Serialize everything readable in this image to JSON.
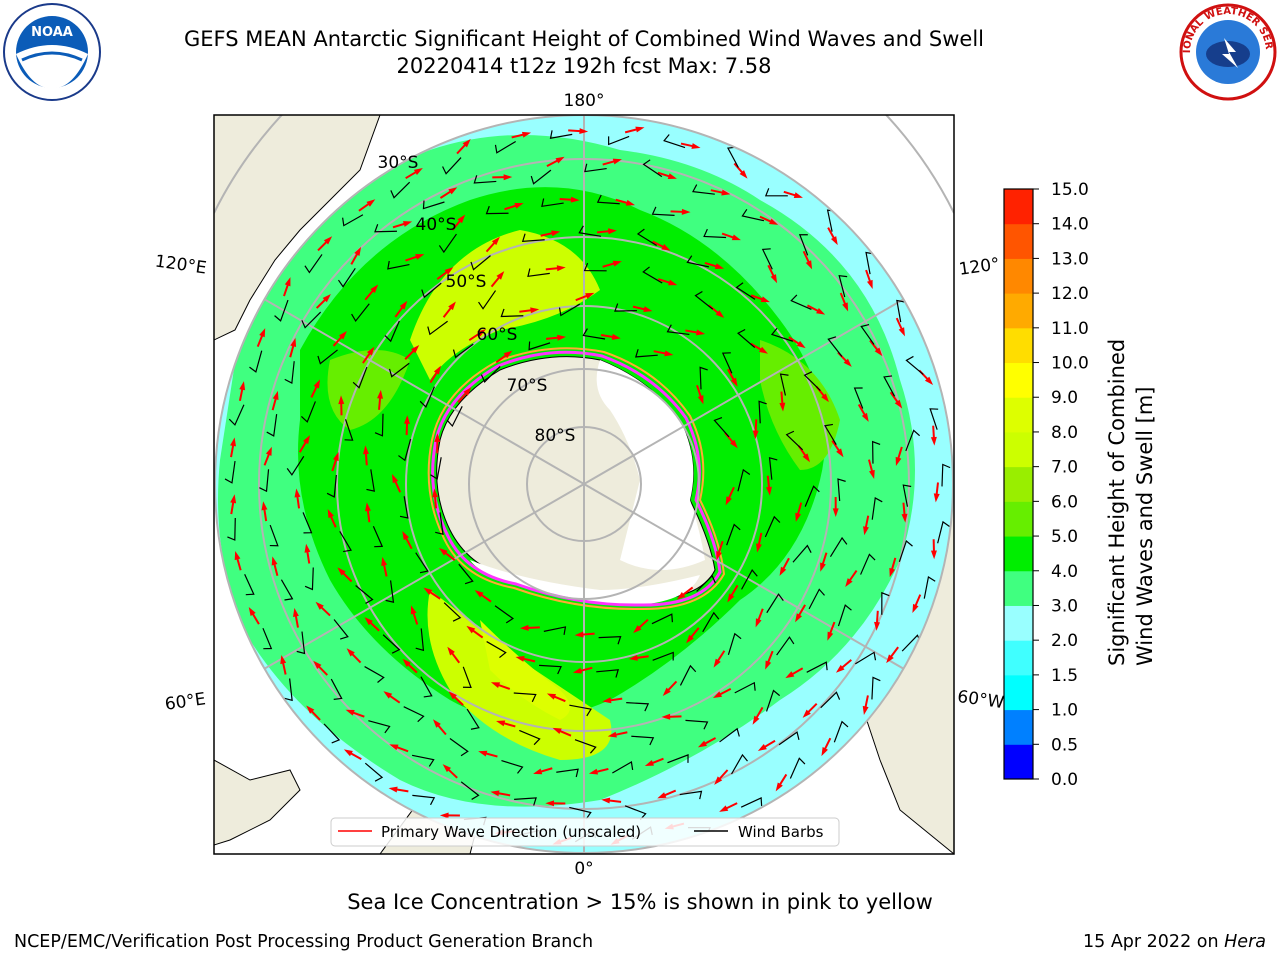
{
  "title": {
    "line1": "GEFS MEAN Antarctic Significant Height of Combined Wind Waves and Swell",
    "line2": "20220414 t12z 192h fcst   Max: 7.58"
  },
  "logos": {
    "left": {
      "icon": "noaa-logo",
      "text": "NOAA"
    },
    "right": {
      "icon": "nws-logo",
      "text": "NATIONAL WEATHER SERVICE"
    }
  },
  "map": {
    "projection": "south-polar-stereographic",
    "longitude_labels": [
      "180°",
      "120°E",
      "120°",
      "60°E",
      "60°W",
      "0°"
    ],
    "latitude_labels": [
      "30°S",
      "40°S",
      "50°S",
      "60°S",
      "70°S",
      "80°S"
    ],
    "colors": {
      "land": "#eeecdc",
      "ice": "#ffffff",
      "ice_edge": [
        "#ff33ff",
        "#ffaa33"
      ],
      "graticule": "#b4b4b4",
      "wave_arrow": "#ff0000",
      "wind_barb": "#000000"
    }
  },
  "legend": {
    "primary_wave": "Primary Wave Direction (unscaled)",
    "wind_barbs": "Wind Barbs"
  },
  "colorbar": {
    "label_line1": "Significant Height of Combined",
    "label_line2": "Wind Waves and Swell [m]",
    "ticks": [
      "15.0",
      "14.0",
      "13.0",
      "12.0",
      "11.0",
      "10.0",
      "9.0",
      "8.0",
      "7.0",
      "6.0",
      "5.0",
      "4.0",
      "3.0",
      "2.0",
      "1.5",
      "1.0",
      "0.5",
      "0.0"
    ],
    "colors": [
      "#0000ff",
      "#0080ff",
      "#00ffff",
      "#40ffff",
      "#99ffff",
      "#40ff80",
      "#00ee00",
      "#66ee00",
      "#99ee00",
      "#ccff00",
      "#ddff00",
      "#ffff00",
      "#ffdd00",
      "#ffaa00",
      "#ff8800",
      "#ff5500",
      "#ff2200",
      "#ff0000"
    ]
  },
  "subtitle": "Sea Ice Concentration > 15% is shown in pink to yellow",
  "footer": {
    "left": "NCEP/EMC/Verification Post Processing Product Generation Branch",
    "right_date": "15 Apr 2022 on ",
    "right_host": "Hera"
  }
}
